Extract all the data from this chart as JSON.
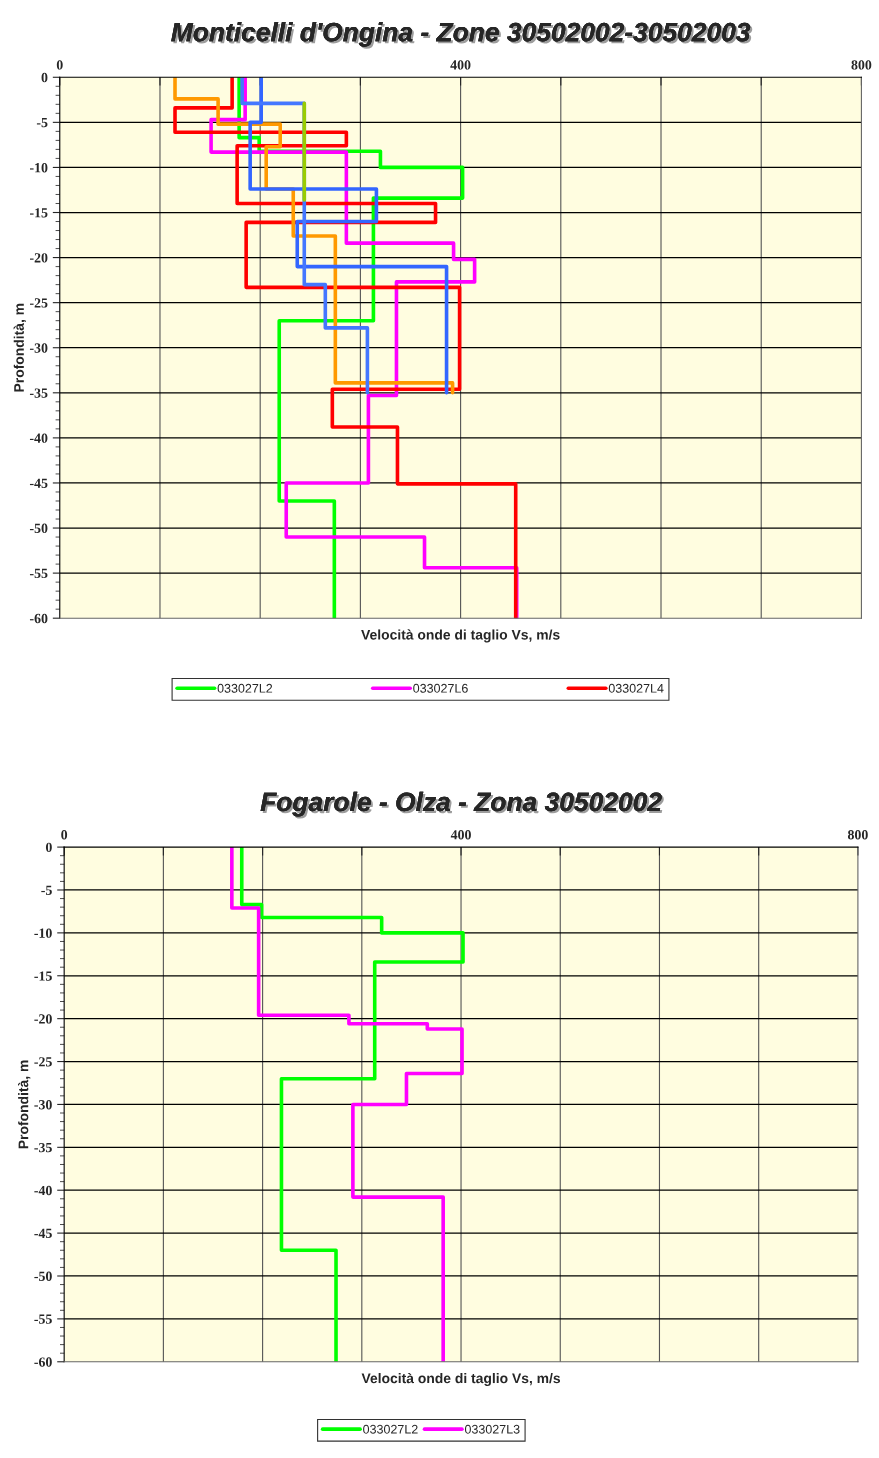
{
  "chart_data": [
    {
      "type": "line",
      "title": "Monticelli d'Ongina - Zone 30502002-30502003",
      "xlabel": "Velocità onde di taglio Vs, m/s",
      "ylabel": "Profondità, m",
      "xlim": [
        0,
        800
      ],
      "xticks": [
        0,
        {
          "value": 100,
          "label": null
        },
        {
          "value": 200,
          "label": null
        },
        {
          "value": 300,
          "label": null
        },
        400,
        {
          "value": 500,
          "label": null
        },
        {
          "value": 600,
          "label": null
        },
        {
          "value": 700,
          "label": null
        },
        800
      ],
      "ylim": [
        -60,
        0
      ],
      "yticks": [
        -60,
        -55,
        -50,
        -45,
        -40,
        -35,
        -30,
        -25,
        -20,
        -15,
        -10,
        -5,
        0
      ],
      "grid": true,
      "legend": "bottom",
      "line_style": "solid",
      "series": [
        {
          "name": "033027L2",
          "color": "#00ff00",
          "x": [
            179,
            179,
            199,
            199,
            320,
            320,
            402,
            402,
            313,
            313,
            219,
            219,
            274,
            274
          ],
          "values": [
            0,
            -6.7,
            -6.7,
            -8.2,
            -8.2,
            -10,
            -10,
            -13.4,
            -13.4,
            -27,
            -27,
            -47,
            -47,
            -60
          ]
        },
        {
          "name": "033027L6",
          "color": "#ff00ff",
          "x": [
            185,
            185,
            151,
            151,
            286,
            286,
            393,
            393,
            414,
            414,
            336,
            336,
            308,
            308,
            226,
            226,
            364,
            364,
            456,
            456
          ],
          "values": [
            0,
            -4.7,
            -4.7,
            -8.3,
            -8.3,
            -18.4,
            -18.4,
            -20.2,
            -20.2,
            -22.7,
            -22.7,
            -35.3,
            -35.3,
            -45,
            -45,
            -51,
            -51,
            -54.4,
            -54.4,
            -60
          ]
        },
        {
          "name": "033027L4",
          "color": "#ff0000",
          "x": [
            172,
            172,
            115,
            115,
            286,
            286,
            177,
            177,
            375,
            375,
            186,
            186,
            399,
            399,
            272,
            272,
            337,
            337,
            455,
            455
          ],
          "values": [
            0,
            -3.4,
            -3.4,
            -6.1,
            -6.1,
            -7.6,
            -7.6,
            -14,
            -14,
            -16.1,
            -16.1,
            -23.3,
            -23.3,
            -34.6,
            -34.6,
            -38.8,
            -38.8,
            -45.1,
            -45.1,
            -60
          ]
        },
        {
          "color": "#ff9900",
          "x": [
            115,
            115,
            158,
            158,
            220,
            220,
            206,
            206,
            233,
            233,
            275,
            275,
            392,
            392
          ],
          "values": [
            0,
            -2.4,
            -2.4,
            -5.2,
            -5.2,
            -7.7,
            -7.7,
            -12.4,
            -12.4,
            -17.6,
            -17.6,
            -33.9,
            -33.9,
            -35
          ]
        },
        {
          "color": "#3366ff",
          "x": [
            201,
            201,
            190,
            190,
            316,
            316,
            237,
            237,
            386,
            386
          ],
          "values": [
            0,
            -5,
            -5,
            -12.4,
            -12.4,
            -16,
            -16,
            -21,
            -21,
            -35
          ]
        },
        {
          "color": "#4477ff",
          "x": [
            182,
            182,
            244,
            244,
            265,
            265,
            307,
            307
          ],
          "values": [
            0,
            -2.9,
            -2.9,
            -23,
            -23,
            -27.8,
            -27.8,
            -35
          ]
        },
        {
          "color": "#99cc00",
          "x": [
            244,
            244
          ],
          "values": [
            -2.9,
            -13.6
          ]
        }
      ]
    },
    {
      "type": "line",
      "title": "Fogarole - Olza - Zona 30502002",
      "xlabel": "Velocità onde di taglio Vs, m/s",
      "ylabel": "Profondità, m",
      "xlim": [
        0,
        800
      ],
      "xticks": [
        0,
        {
          "value": 100,
          "label": null
        },
        {
          "value": 200,
          "label": null
        },
        {
          "value": 300,
          "label": null
        },
        400,
        {
          "value": 500,
          "label": null
        },
        {
          "value": 600,
          "label": null
        },
        {
          "value": 700,
          "label": null
        },
        800
      ],
      "ylim": [
        -60,
        0
      ],
      "yticks": [
        -60,
        -55,
        -50,
        -45,
        -40,
        -35,
        -30,
        -25,
        -20,
        -15,
        -10,
        -5,
        0
      ],
      "grid": true,
      "legend": "bottom",
      "line_style": "solid",
      "series": [
        {
          "name": "033027L2",
          "color": "#00ff00",
          "x": [
            179,
            179,
            199,
            199,
            320,
            320,
            402,
            402,
            313,
            313,
            219,
            219,
            274,
            274
          ],
          "values": [
            0,
            -6.7,
            -6.7,
            -8.2,
            -8.2,
            -10,
            -10,
            -13.4,
            -13.4,
            -27,
            -27,
            -47,
            -47,
            -60
          ]
        },
        {
          "name": "033027L3",
          "color": "#ff00ff",
          "x": [
            169,
            169,
            196,
            196,
            287,
            287,
            366,
            366,
            401,
            401,
            345,
            345,
            291,
            291,
            382,
            382
          ],
          "values": [
            0,
            -7.1,
            -7.1,
            -19.6,
            -19.6,
            -20.6,
            -20.6,
            -21.2,
            -21.2,
            -26.4,
            -26.4,
            -30,
            -30,
            -40.8,
            -40.8,
            -60
          ]
        }
      ]
    }
  ]
}
